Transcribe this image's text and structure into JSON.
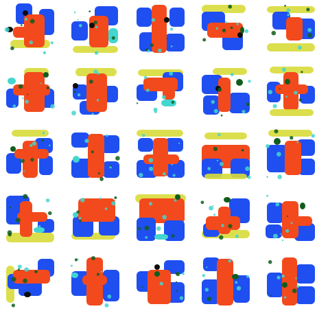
{
  "grid": {
    "rows": 5,
    "cols": 5
  },
  "palette": {
    "blue": "#1f4ff0",
    "red": "#f24a1c",
    "yellow": "#d8dc3a",
    "cyan": "#43d6cf",
    "green": "#0f5d1d",
    "black": "#0b0d0e",
    "background": "#ffffff"
  },
  "tiles": [
    {
      "row": 0,
      "col": 0,
      "name": "sample-r1-c1"
    },
    {
      "row": 0,
      "col": 1,
      "name": "sample-r1-c2"
    },
    {
      "row": 0,
      "col": 2,
      "name": "sample-r1-c3"
    },
    {
      "row": 0,
      "col": 3,
      "name": "sample-r1-c4"
    },
    {
      "row": 0,
      "col": 4,
      "name": "sample-r1-c5"
    },
    {
      "row": 1,
      "col": 0,
      "name": "sample-r2-c1"
    },
    {
      "row": 1,
      "col": 1,
      "name": "sample-r2-c2"
    },
    {
      "row": 1,
      "col": 2,
      "name": "sample-r2-c3"
    },
    {
      "row": 1,
      "col": 3,
      "name": "sample-r2-c4"
    },
    {
      "row": 1,
      "col": 4,
      "name": "sample-r2-c5"
    },
    {
      "row": 2,
      "col": 0,
      "name": "sample-r3-c1"
    },
    {
      "row": 2,
      "col": 1,
      "name": "sample-r3-c2"
    },
    {
      "row": 2,
      "col": 2,
      "name": "sample-r3-c3"
    },
    {
      "row": 2,
      "col": 3,
      "name": "sample-r3-c4"
    },
    {
      "row": 2,
      "col": 4,
      "name": "sample-r3-c5"
    },
    {
      "row": 3,
      "col": 0,
      "name": "sample-r4-c1"
    },
    {
      "row": 3,
      "col": 1,
      "name": "sample-r4-c2"
    },
    {
      "row": 3,
      "col": 2,
      "name": "sample-r4-c3"
    },
    {
      "row": 3,
      "col": 3,
      "name": "sample-r4-c4"
    },
    {
      "row": 3,
      "col": 4,
      "name": "sample-r4-c5"
    },
    {
      "row": 4,
      "col": 0,
      "name": "sample-r5-c1"
    },
    {
      "row": 4,
      "col": 1,
      "name": "sample-r5-c2"
    },
    {
      "row": 4,
      "col": 2,
      "name": "sample-r5-c3"
    },
    {
      "row": 4,
      "col": 3,
      "name": "sample-r5-c4"
    },
    {
      "row": 4,
      "col": 4,
      "name": "sample-r5-c5"
    }
  ]
}
